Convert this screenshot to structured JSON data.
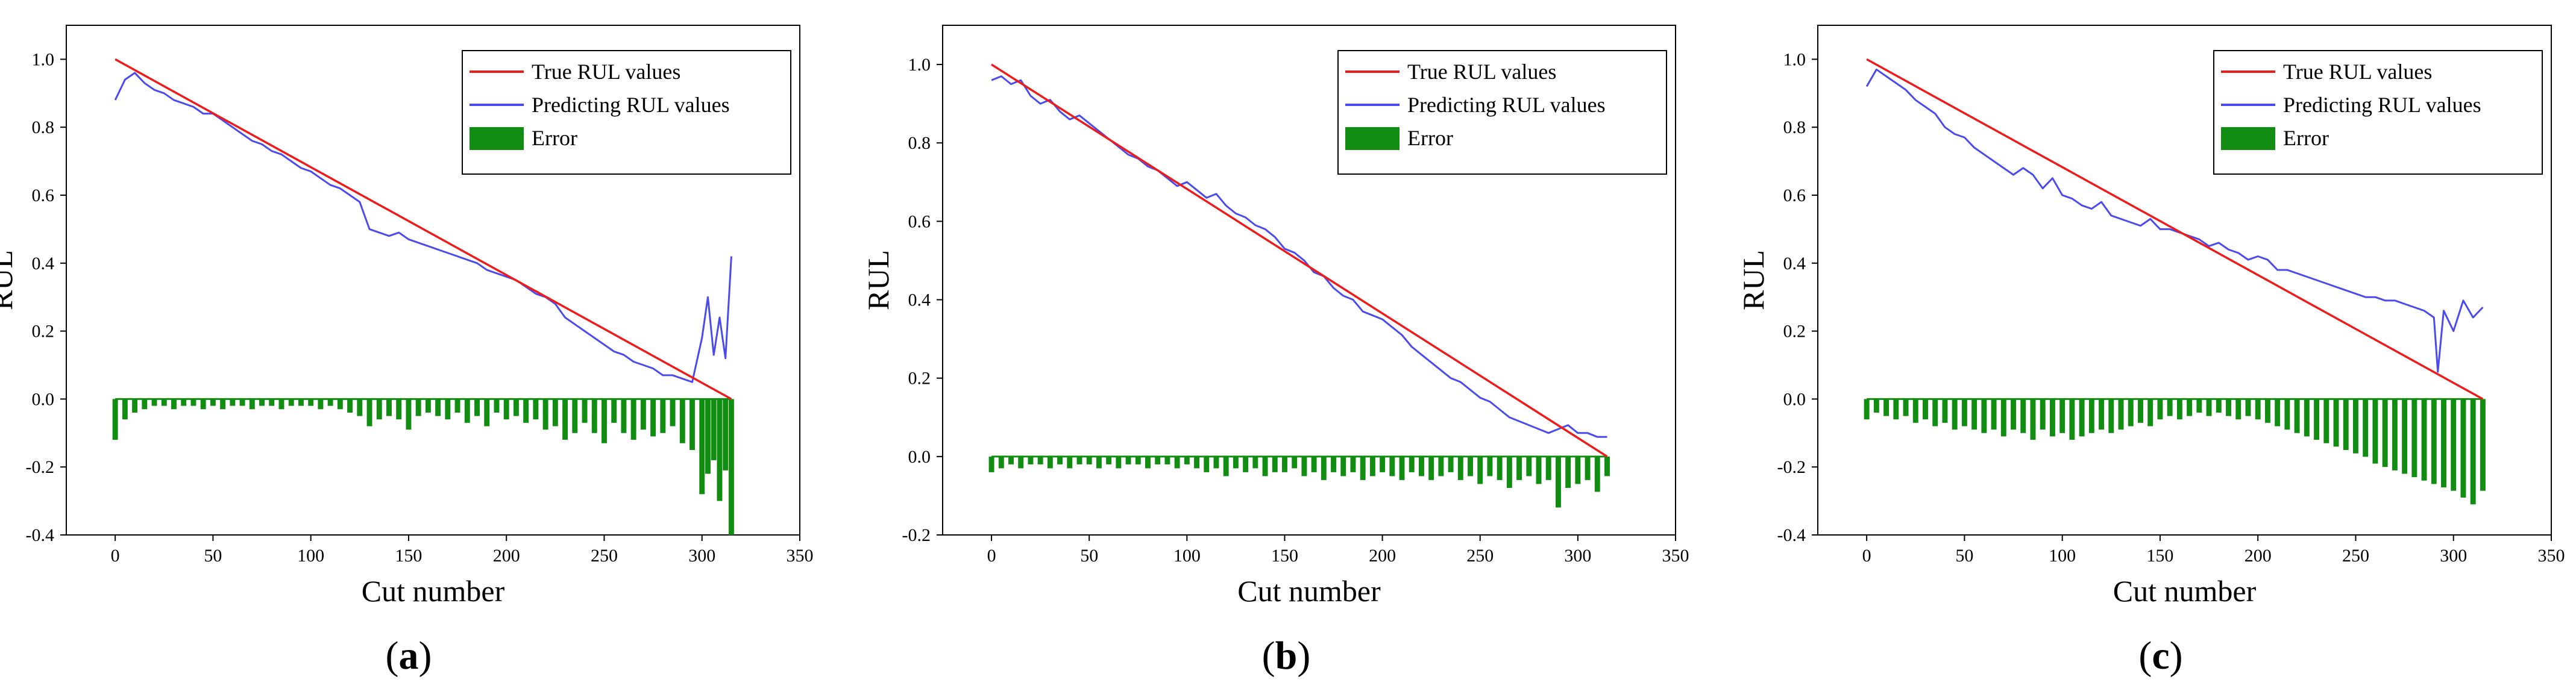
{
  "figure": {
    "panels": [
      {
        "label_open": "(",
        "label_letter": "a",
        "label_close": ")"
      },
      {
        "label_open": "(",
        "label_letter": "b",
        "label_close": ")"
      },
      {
        "label_open": "(",
        "label_letter": "c",
        "label_close": ")"
      }
    ]
  },
  "colors": {
    "true": "#ee1b1b",
    "predicted": "#4a4aee",
    "error": "#118d11"
  },
  "chart_data": [
    {
      "type": "line",
      "xlabel": "Cut number",
      "ylabel": "RUL",
      "xlim": [
        -25,
        350
      ],
      "ylim": [
        -0.4,
        1.1
      ],
      "xticks": [
        0,
        50,
        100,
        150,
        200,
        250,
        300,
        350
      ],
      "yticks": [
        -0.4,
        -0.2,
        0.0,
        0.2,
        0.4,
        0.6,
        0.8,
        1.0
      ],
      "error_baseline": 0.0,
      "legend_position": "top-right",
      "legend": [
        "True RUL values",
        "Predicting RUL values",
        "Error"
      ],
      "true_rul": {
        "x": [
          0,
          315
        ],
        "y": [
          1.0,
          0.0
        ]
      },
      "predicted_rul": {
        "x": [
          0,
          5,
          10,
          15,
          20,
          25,
          30,
          35,
          40,
          45,
          50,
          55,
          60,
          65,
          70,
          75,
          80,
          85,
          90,
          95,
          100,
          105,
          110,
          115,
          120,
          125,
          130,
          135,
          140,
          145,
          150,
          155,
          160,
          165,
          170,
          175,
          180,
          185,
          190,
          195,
          200,
          205,
          210,
          215,
          220,
          225,
          230,
          235,
          240,
          245,
          250,
          255,
          260,
          265,
          270,
          275,
          280,
          285,
          290,
          295,
          300,
          303,
          306,
          309,
          312,
          315
        ],
        "y": [
          0.88,
          0.94,
          0.96,
          0.93,
          0.91,
          0.9,
          0.88,
          0.87,
          0.86,
          0.84,
          0.84,
          0.82,
          0.8,
          0.78,
          0.76,
          0.75,
          0.73,
          0.72,
          0.7,
          0.68,
          0.67,
          0.65,
          0.63,
          0.62,
          0.6,
          0.58,
          0.5,
          0.49,
          0.48,
          0.49,
          0.47,
          0.46,
          0.45,
          0.44,
          0.43,
          0.42,
          0.41,
          0.4,
          0.38,
          0.37,
          0.36,
          0.35,
          0.33,
          0.31,
          0.3,
          0.28,
          0.24,
          0.22,
          0.2,
          0.18,
          0.16,
          0.14,
          0.13,
          0.11,
          0.1,
          0.09,
          0.07,
          0.07,
          0.06,
          0.05,
          0.18,
          0.3,
          0.13,
          0.24,
          0.12,
          0.42
        ]
      },
      "error_bars": {
        "x": [
          0,
          5,
          10,
          15,
          20,
          25,
          30,
          35,
          40,
          45,
          50,
          55,
          60,
          65,
          70,
          75,
          80,
          85,
          90,
          95,
          100,
          105,
          110,
          115,
          120,
          125,
          130,
          135,
          140,
          145,
          150,
          155,
          160,
          165,
          170,
          175,
          180,
          185,
          190,
          195,
          200,
          205,
          210,
          215,
          220,
          225,
          230,
          235,
          240,
          245,
          250,
          255,
          260,
          265,
          270,
          275,
          280,
          285,
          290,
          295,
          300,
          303,
          306,
          309,
          312,
          315
        ],
        "y": [
          -0.12,
          -0.06,
          -0.04,
          -0.03,
          -0.02,
          -0.02,
          -0.03,
          -0.02,
          -0.02,
          -0.03,
          -0.02,
          -0.03,
          -0.02,
          -0.02,
          -0.03,
          -0.02,
          -0.02,
          -0.03,
          -0.02,
          -0.02,
          -0.02,
          -0.03,
          -0.02,
          -0.03,
          -0.04,
          -0.05,
          -0.08,
          -0.06,
          -0.05,
          -0.06,
          -0.09,
          -0.05,
          -0.04,
          -0.05,
          -0.06,
          -0.04,
          -0.07,
          -0.05,
          -0.08,
          -0.04,
          -0.06,
          -0.05,
          -0.07,
          -0.06,
          -0.09,
          -0.08,
          -0.12,
          -0.1,
          -0.07,
          -0.1,
          -0.13,
          -0.07,
          -0.1,
          -0.12,
          -0.09,
          -0.11,
          -0.1,
          -0.08,
          -0.13,
          -0.15,
          -0.28,
          -0.22,
          -0.18,
          -0.3,
          -0.21,
          -0.4
        ]
      }
    },
    {
      "type": "line",
      "xlabel": "Cut number",
      "ylabel": "RUL",
      "xlim": [
        -25,
        350
      ],
      "ylim": [
        -0.2,
        1.1
      ],
      "xticks": [
        0,
        50,
        100,
        150,
        200,
        250,
        300,
        350
      ],
      "yticks": [
        -0.2,
        0.0,
        0.2,
        0.4,
        0.6,
        0.8,
        1.0
      ],
      "error_baseline": 0.0,
      "legend_position": "top-right",
      "legend": [
        "True RUL values",
        "Predicting RUL values",
        "Error"
      ],
      "true_rul": {
        "x": [
          0,
          315
        ],
        "y": [
          1.0,
          0.0
        ]
      },
      "predicted_rul": {
        "x": [
          0,
          5,
          10,
          15,
          20,
          25,
          30,
          35,
          40,
          45,
          50,
          55,
          60,
          65,
          70,
          75,
          80,
          85,
          90,
          95,
          100,
          105,
          110,
          115,
          120,
          125,
          130,
          135,
          140,
          145,
          150,
          155,
          160,
          165,
          170,
          175,
          180,
          185,
          190,
          195,
          200,
          205,
          210,
          215,
          220,
          225,
          230,
          235,
          240,
          245,
          250,
          255,
          260,
          265,
          270,
          275,
          280,
          285,
          290,
          295,
          300,
          305,
          310,
          315
        ],
        "y": [
          0.96,
          0.97,
          0.95,
          0.96,
          0.92,
          0.9,
          0.91,
          0.88,
          0.86,
          0.87,
          0.85,
          0.83,
          0.81,
          0.79,
          0.77,
          0.76,
          0.74,
          0.73,
          0.71,
          0.69,
          0.7,
          0.68,
          0.66,
          0.67,
          0.64,
          0.62,
          0.61,
          0.59,
          0.58,
          0.56,
          0.53,
          0.52,
          0.5,
          0.47,
          0.46,
          0.43,
          0.41,
          0.4,
          0.37,
          0.36,
          0.35,
          0.33,
          0.31,
          0.28,
          0.26,
          0.24,
          0.22,
          0.2,
          0.19,
          0.17,
          0.15,
          0.14,
          0.12,
          0.1,
          0.09,
          0.08,
          0.07,
          0.06,
          0.07,
          0.08,
          0.06,
          0.06,
          0.05,
          0.05
        ]
      },
      "error_bars": {
        "x": [
          0,
          5,
          10,
          15,
          20,
          25,
          30,
          35,
          40,
          45,
          50,
          55,
          60,
          65,
          70,
          75,
          80,
          85,
          90,
          95,
          100,
          105,
          110,
          115,
          120,
          125,
          130,
          135,
          140,
          145,
          150,
          155,
          160,
          165,
          170,
          175,
          180,
          185,
          190,
          195,
          200,
          205,
          210,
          215,
          220,
          225,
          230,
          235,
          240,
          245,
          250,
          255,
          260,
          265,
          270,
          275,
          280,
          285,
          290,
          295,
          300,
          305,
          310,
          315
        ],
        "y": [
          -0.04,
          -0.03,
          -0.02,
          -0.03,
          -0.02,
          -0.02,
          -0.03,
          -0.02,
          -0.03,
          -0.02,
          -0.02,
          -0.03,
          -0.02,
          -0.03,
          -0.02,
          -0.02,
          -0.03,
          -0.02,
          -0.02,
          -0.03,
          -0.02,
          -0.03,
          -0.04,
          -0.03,
          -0.05,
          -0.03,
          -0.04,
          -0.03,
          -0.05,
          -0.04,
          -0.04,
          -0.03,
          -0.05,
          -0.04,
          -0.06,
          -0.04,
          -0.05,
          -0.04,
          -0.06,
          -0.05,
          -0.04,
          -0.05,
          -0.06,
          -0.04,
          -0.05,
          -0.06,
          -0.05,
          -0.04,
          -0.06,
          -0.05,
          -0.07,
          -0.05,
          -0.06,
          -0.08,
          -0.06,
          -0.05,
          -0.07,
          -0.06,
          -0.13,
          -0.08,
          -0.07,
          -0.06,
          -0.09,
          -0.05
        ]
      }
    },
    {
      "type": "line",
      "xlabel": "Cut number",
      "ylabel": "RUL",
      "xlim": [
        -25,
        350
      ],
      "ylim": [
        -0.4,
        1.1
      ],
      "xticks": [
        0,
        50,
        100,
        150,
        200,
        250,
        300,
        350
      ],
      "yticks": [
        -0.4,
        -0.2,
        0.0,
        0.2,
        0.4,
        0.6,
        0.8,
        1.0
      ],
      "error_baseline": 0.0,
      "legend_position": "top-right",
      "legend": [
        "True RUL values",
        "Predicting RUL values",
        "Error"
      ],
      "true_rul": {
        "x": [
          0,
          315
        ],
        "y": [
          1.0,
          0.0
        ]
      },
      "predicted_rul": {
        "x": [
          0,
          5,
          10,
          15,
          20,
          25,
          30,
          35,
          40,
          45,
          50,
          55,
          60,
          65,
          70,
          75,
          80,
          85,
          90,
          95,
          100,
          105,
          110,
          115,
          120,
          125,
          130,
          135,
          140,
          145,
          150,
          155,
          160,
          165,
          170,
          175,
          180,
          185,
          190,
          195,
          200,
          205,
          210,
          215,
          220,
          225,
          230,
          235,
          240,
          245,
          250,
          255,
          260,
          265,
          270,
          275,
          280,
          285,
          290,
          292,
          295,
          300,
          305,
          310,
          315
        ],
        "y": [
          0.92,
          0.97,
          0.95,
          0.93,
          0.91,
          0.88,
          0.86,
          0.84,
          0.8,
          0.78,
          0.77,
          0.74,
          0.72,
          0.7,
          0.68,
          0.66,
          0.68,
          0.66,
          0.62,
          0.65,
          0.6,
          0.59,
          0.57,
          0.56,
          0.58,
          0.54,
          0.53,
          0.52,
          0.51,
          0.53,
          0.5,
          0.5,
          0.49,
          0.48,
          0.47,
          0.45,
          0.46,
          0.44,
          0.43,
          0.41,
          0.42,
          0.41,
          0.38,
          0.38,
          0.37,
          0.36,
          0.35,
          0.34,
          0.33,
          0.32,
          0.31,
          0.3,
          0.3,
          0.29,
          0.29,
          0.28,
          0.27,
          0.26,
          0.24,
          0.08,
          0.26,
          0.2,
          0.29,
          0.24,
          0.27
        ]
      },
      "error_bars": {
        "x": [
          0,
          5,
          10,
          15,
          20,
          25,
          30,
          35,
          40,
          45,
          50,
          55,
          60,
          65,
          70,
          75,
          80,
          85,
          90,
          95,
          100,
          105,
          110,
          115,
          120,
          125,
          130,
          135,
          140,
          145,
          150,
          155,
          160,
          165,
          170,
          175,
          180,
          185,
          190,
          195,
          200,
          205,
          210,
          215,
          220,
          225,
          230,
          235,
          240,
          245,
          250,
          255,
          260,
          265,
          270,
          275,
          280,
          285,
          290,
          295,
          300,
          305,
          310,
          315
        ],
        "y": [
          -0.06,
          -0.04,
          -0.05,
          -0.06,
          -0.05,
          -0.07,
          -0.06,
          -0.08,
          -0.07,
          -0.09,
          -0.08,
          -0.09,
          -0.1,
          -0.09,
          -0.11,
          -0.09,
          -0.1,
          -0.12,
          -0.09,
          -0.11,
          -0.1,
          -0.12,
          -0.11,
          -0.1,
          -0.09,
          -0.1,
          -0.09,
          -0.08,
          -0.07,
          -0.08,
          -0.06,
          -0.05,
          -0.06,
          -0.05,
          -0.04,
          -0.05,
          -0.04,
          -0.05,
          -0.06,
          -0.05,
          -0.06,
          -0.07,
          -0.08,
          -0.09,
          -0.1,
          -0.11,
          -0.12,
          -0.13,
          -0.14,
          -0.15,
          -0.16,
          -0.17,
          -0.19,
          -0.2,
          -0.21,
          -0.22,
          -0.23,
          -0.24,
          -0.25,
          -0.26,
          -0.27,
          -0.29,
          -0.31,
          -0.27
        ]
      }
    }
  ]
}
